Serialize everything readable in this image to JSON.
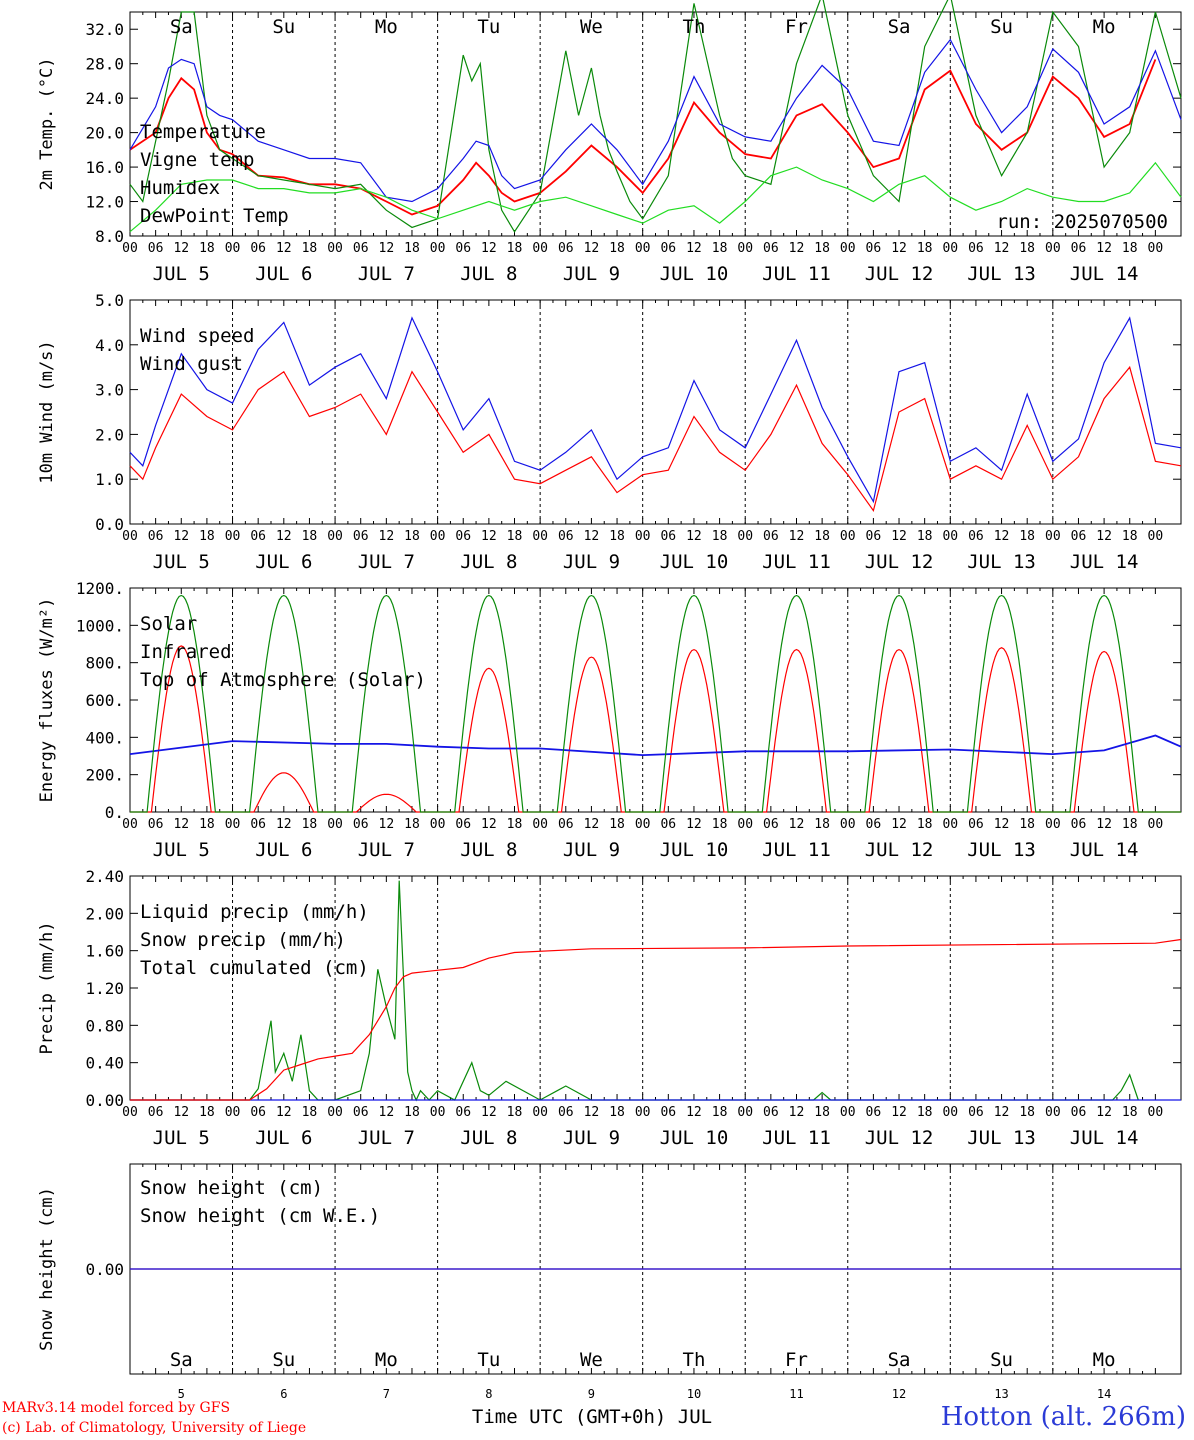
{
  "run_label": "run: 2025070500",
  "month": "JUL",
  "x_axis_title": "Time UTC (GMT+0h) JUL",
  "credits": [
    "MARv3.14 model forced by GFS",
    "(c) Lab. of Climatology, University of Liege"
  ],
  "station": "Hotton (alt. 266m)",
  "colors": {
    "red": "#ff0000",
    "blue": "#1414e6",
    "green": "#0a8a0a",
    "lightgreen": "#22dd22",
    "weekend": "#ff0000",
    "weekday": "#000000"
  },
  "hour_ticks": [
    "00",
    "06",
    "12",
    "18"
  ],
  "days": [
    {
      "date": "5",
      "dow": "Sa",
      "weekend": true
    },
    {
      "date": "6",
      "dow": "Su",
      "weekend": true
    },
    {
      "date": "7",
      "dow": "Mo",
      "weekend": false
    },
    {
      "date": "8",
      "dow": "Tu",
      "weekend": false
    },
    {
      "date": "9",
      "dow": "We",
      "weekend": false
    },
    {
      "date": "10",
      "dow": "Th",
      "weekend": false
    },
    {
      "date": "11",
      "dow": "Fr",
      "weekend": false
    },
    {
      "date": "12",
      "dow": "Sa",
      "weekend": true
    },
    {
      "date": "13",
      "dow": "Su",
      "weekend": true
    },
    {
      "date": "14",
      "dow": "Mo",
      "weekend": false
    }
  ],
  "chart_data": [
    {
      "type": "line",
      "ylabel": "2m Temp. (°C)",
      "ylim": [
        8,
        34
      ],
      "yticks": [
        "8.0",
        "12.0",
        "16.0",
        "20.0",
        "24.0",
        "28.0",
        "32.0"
      ],
      "ytick_values": [
        8,
        12,
        16,
        20,
        24,
        28,
        32
      ],
      "x_unit": "hours since JUL 5 00 UTC",
      "series": [
        {
          "name": "Temperature",
          "color": "red",
          "x": [
            0,
            6,
            9,
            12,
            15,
            18,
            21,
            24,
            30,
            36,
            42,
            48,
            54,
            60,
            66,
            72,
            78,
            81,
            84,
            87,
            90,
            96,
            102,
            108,
            114,
            120,
            126,
            132,
            138,
            144,
            150,
            156,
            162,
            168,
            174,
            180,
            186,
            192,
            198,
            204,
            210,
            216,
            222,
            228,
            234,
            240
          ],
          "y": [
            18,
            20,
            24,
            26.3,
            25,
            20,
            18,
            17.5,
            15,
            14.8,
            14,
            14,
            13.5,
            12,
            10.5,
            11.5,
            14.5,
            16.5,
            15,
            13,
            12,
            13,
            15.5,
            18.5,
            16,
            13,
            17,
            23.5,
            20,
            17.5,
            17,
            22,
            23.3,
            20,
            16,
            17,
            25,
            27.2,
            21,
            18,
            20,
            26.5,
            24,
            19.5,
            21,
            28.5
          ]
        },
        {
          "name": "Vigne temp",
          "color": "green",
          "x": [
            0,
            3,
            9,
            12,
            15,
            18,
            21,
            24,
            30,
            36,
            42,
            48,
            54,
            60,
            66,
            72,
            78,
            80,
            82,
            84,
            87,
            90,
            96,
            102,
            105,
            108,
            110,
            112,
            114,
            117,
            120,
            126,
            132,
            138,
            141,
            144,
            150,
            156,
            162,
            168,
            174,
            180,
            186,
            192,
            198,
            204,
            210,
            216,
            222,
            228,
            234,
            240,
            246
          ],
          "y": [
            14,
            12,
            26,
            34,
            34,
            22,
            18,
            17,
            15,
            14.5,
            14,
            13.5,
            14,
            11,
            9,
            10,
            29,
            26,
            28,
            18,
            11,
            8.5,
            13,
            29.5,
            22,
            27.5,
            22,
            18,
            15.5,
            12,
            10,
            15,
            35,
            22,
            17,
            15,
            14,
            28,
            36,
            22,
            15,
            12,
            30,
            36,
            22,
            15,
            20,
            34,
            30,
            16,
            20,
            34,
            24
          ]
        },
        {
          "name": "Humidex",
          "color": "blue",
          "x": [
            0,
            6,
            9,
            12,
            15,
            18,
            21,
            24,
            30,
            36,
            42,
            48,
            54,
            60,
            66,
            72,
            78,
            81,
            84,
            87,
            90,
            96,
            102,
            108,
            114,
            120,
            126,
            132,
            138,
            144,
            150,
            156,
            162,
            168,
            174,
            180,
            186,
            192,
            198,
            204,
            210,
            216,
            222,
            228,
            234,
            240,
            246
          ],
          "y": [
            18,
            23,
            27.5,
            28.5,
            28,
            23,
            22,
            21.5,
            19,
            18,
            17,
            17,
            16.5,
            12.5,
            12,
            13.5,
            17,
            19,
            18.5,
            15,
            13.5,
            14.5,
            18,
            21,
            18,
            14,
            19,
            26.5,
            21,
            19.5,
            19,
            24,
            27.8,
            25,
            19,
            18.5,
            27,
            30.8,
            25,
            20,
            23,
            29.7,
            27,
            21,
            23,
            29.5,
            21.5
          ]
        },
        {
          "name": "DewPoint Temp",
          "color": "lightgreen",
          "x": [
            0,
            6,
            12,
            18,
            24,
            30,
            36,
            42,
            48,
            54,
            60,
            66,
            72,
            78,
            84,
            90,
            96,
            102,
            108,
            114,
            120,
            126,
            132,
            138,
            144,
            150,
            156,
            162,
            168,
            174,
            180,
            186,
            192,
            198,
            204,
            210,
            216,
            222,
            228,
            234,
            240,
            246
          ],
          "y": [
            8.5,
            11,
            14,
            14.5,
            14.5,
            13.5,
            13.5,
            13,
            13,
            13.5,
            12.5,
            11,
            10,
            11,
            12,
            11,
            12,
            12.5,
            11.5,
            10.5,
            9.5,
            11,
            11.5,
            9.5,
            12,
            15,
            16,
            14.5,
            13.5,
            12,
            14,
            15,
            12.5,
            11,
            12,
            13.5,
            12.5,
            12,
            12,
            13,
            16.5,
            12.5
          ]
        }
      ]
    },
    {
      "type": "line",
      "ylabel": "10m Wind (m/s)",
      "ylim": [
        0,
        5
      ],
      "yticks": [
        "0.0",
        "1.0",
        "2.0",
        "3.0",
        "4.0",
        "5.0"
      ],
      "ytick_values": [
        0,
        1,
        2,
        3,
        4,
        5
      ],
      "x_unit": "hours since JUL 5 00 UTC",
      "series": [
        {
          "name": "Wind speed",
          "color": "red",
          "x": [
            0,
            3,
            6,
            12,
            18,
            24,
            30,
            36,
            42,
            48,
            54,
            60,
            66,
            72,
            78,
            84,
            90,
            96,
            102,
            108,
            114,
            120,
            126,
            132,
            138,
            144,
            150,
            156,
            162,
            168,
            174,
            180,
            186,
            192,
            198,
            204,
            210,
            216,
            222,
            228,
            234,
            240,
            246
          ],
          "y": [
            1.3,
            1.0,
            1.7,
            2.9,
            2.4,
            2.1,
            3.0,
            3.4,
            2.4,
            2.6,
            2.9,
            2.0,
            3.4,
            2.5,
            1.6,
            2.0,
            1.0,
            0.9,
            1.2,
            1.5,
            0.7,
            1.1,
            1.2,
            2.4,
            1.6,
            1.2,
            2.0,
            3.1,
            1.8,
            1.1,
            0.3,
            2.5,
            2.8,
            1.0,
            1.3,
            1.0,
            2.2,
            1.0,
            1.5,
            2.8,
            3.5,
            1.4,
            1.3
          ]
        },
        {
          "name": "Wind gust",
          "color": "blue",
          "x": [
            0,
            3,
            6,
            12,
            18,
            24,
            30,
            36,
            42,
            48,
            54,
            60,
            66,
            72,
            78,
            84,
            90,
            96,
            102,
            108,
            114,
            120,
            126,
            132,
            138,
            144,
            150,
            156,
            162,
            168,
            174,
            180,
            186,
            192,
            198,
            204,
            210,
            216,
            222,
            228,
            234,
            240,
            246
          ],
          "y": [
            1.6,
            1.3,
            2.2,
            3.8,
            3.0,
            2.7,
            3.9,
            4.5,
            3.1,
            3.5,
            3.8,
            2.8,
            4.6,
            3.4,
            2.1,
            2.8,
            1.4,
            1.2,
            1.6,
            2.1,
            1.0,
            1.5,
            1.7,
            3.2,
            2.1,
            1.7,
            2.9,
            4.1,
            2.6,
            1.5,
            0.5,
            3.4,
            3.6,
            1.4,
            1.7,
            1.2,
            2.9,
            1.4,
            1.9,
            3.6,
            4.6,
            1.8,
            1.7
          ]
        }
      ]
    },
    {
      "type": "line",
      "ylabel": "Energy fluxes (W/m²)",
      "ylim": [
        0,
        1200
      ],
      "yticks": [
        "0.",
        "200.",
        "400.",
        "600.",
        "800.",
        "1000.",
        "1200."
      ],
      "ytick_values": [
        0,
        200,
        400,
        600,
        800,
        1000,
        1200
      ],
      "x_unit": "hours since JUL 5 00 UTC",
      "series": [
        {
          "name": "Solar",
          "color": "red",
          "daily_peak": [
            890,
            210,
            95,
            770,
            830,
            870,
            870,
            870,
            880,
            860
          ]
        },
        {
          "name": "Infrared",
          "color": "blue",
          "x": [
            0,
            24,
            48,
            60,
            72,
            84,
            96,
            120,
            144,
            168,
            192,
            216,
            228,
            240,
            246
          ],
          "y": [
            310,
            380,
            365,
            365,
            350,
            340,
            340,
            305,
            325,
            325,
            335,
            310,
            330,
            410,
            350
          ]
        },
        {
          "name": "Top of Atmosphere (Solar)",
          "color": "green",
          "daily_peak": [
            1160,
            1160,
            1160,
            1160,
            1160,
            1160,
            1160,
            1160,
            1160,
            1160
          ]
        }
      ]
    },
    {
      "type": "line",
      "ylabel": "Precip (mm/h)",
      "ylim": [
        0,
        2.4
      ],
      "yticks": [
        "0.00",
        "0.40",
        "0.80",
        "1.20",
        "1.60",
        "2.00",
        "2.40"
      ],
      "ytick_values": [
        0,
        0.4,
        0.8,
        1.2,
        1.6,
        2.0,
        2.4
      ],
      "x_unit": "hours since JUL 5 00 UTC",
      "series": [
        {
          "name": "Liquid precip (mm/h)",
          "color": "green",
          "x": [
            0,
            28,
            30,
            33,
            34,
            36,
            38,
            40,
            42,
            44,
            48,
            54,
            56,
            58,
            60,
            62,
            63,
            65,
            66,
            67,
            68,
            70,
            72,
            76,
            80,
            82,
            84,
            88,
            96,
            100,
            102,
            108,
            120,
            160,
            162,
            164,
            220,
            230,
            232,
            234,
            236
          ],
          "y": [
            0,
            0,
            0.12,
            0.85,
            0.3,
            0.5,
            0.2,
            0.7,
            0.1,
            0,
            0,
            0.1,
            0.5,
            1.4,
            1.0,
            0.65,
            2.35,
            0.3,
            0.1,
            0,
            0.1,
            0,
            0.1,
            0,
            0.4,
            0.1,
            0.05,
            0.2,
            0,
            0.1,
            0.15,
            0,
            0,
            0,
            0.08,
            0,
            0,
            0,
            0.1,
            0.27,
            0
          ]
        },
        {
          "name": "Snow precip (mm/h)",
          "color": "blue",
          "x": [
            0,
            246
          ],
          "y": [
            0,
            0
          ]
        },
        {
          "name": "Total cumulated (cm)",
          "color": "red",
          "x": [
            0,
            28,
            32,
            36,
            40,
            44,
            48,
            52,
            56,
            60,
            62,
            64,
            66,
            70,
            78,
            84,
            90,
            108,
            144,
            168,
            240,
            246
          ],
          "y": [
            0,
            0,
            0.12,
            0.32,
            0.38,
            0.44,
            0.47,
            0.5,
            0.7,
            1.0,
            1.2,
            1.32,
            1.36,
            1.38,
            1.42,
            1.52,
            1.58,
            1.62,
            1.63,
            1.65,
            1.68,
            1.72
          ]
        }
      ]
    },
    {
      "type": "line",
      "ylabel": "Snow height (cm)",
      "yticks": [
        "0.00"
      ],
      "ytick_values": [
        0
      ],
      "x_unit": "hours since JUL 5 00 UTC",
      "series": [
        {
          "name": "Snow height (cm)",
          "color": "red",
          "x": [
            0,
            246
          ],
          "y": [
            0,
            0
          ]
        },
        {
          "name": "Snow height (cm W.E.)",
          "color": "blue",
          "x": [
            0,
            246
          ],
          "y": [
            0,
            0
          ]
        }
      ]
    }
  ]
}
